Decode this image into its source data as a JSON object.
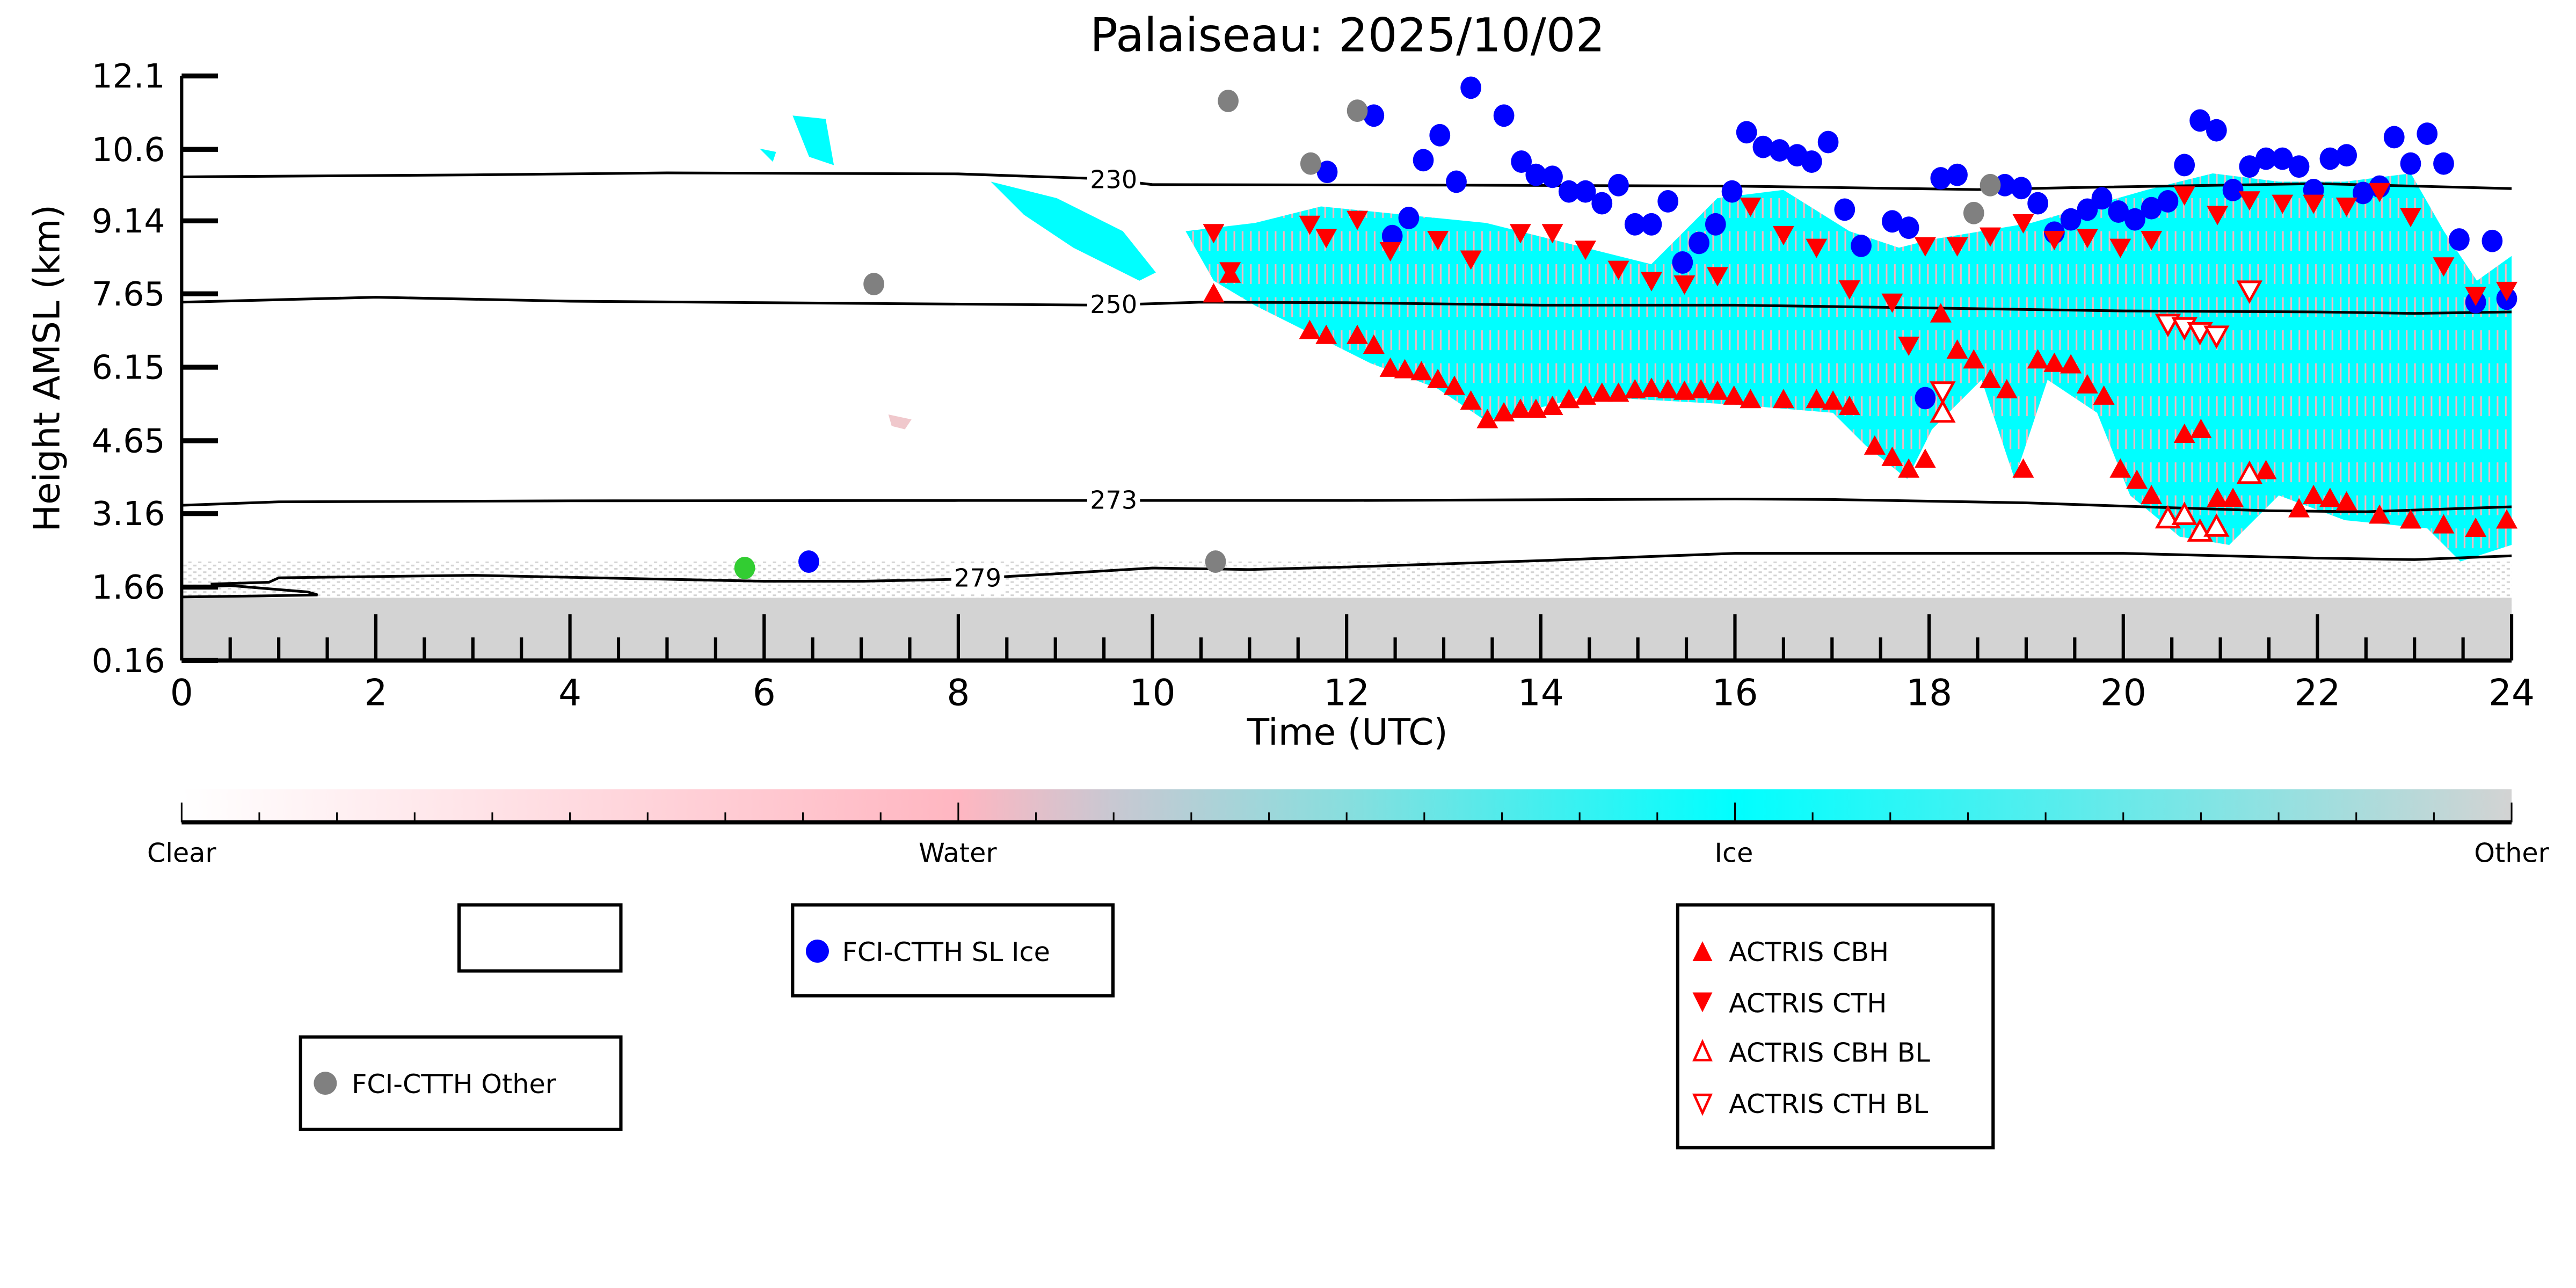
{
  "chart_data": {
    "type": "scatter",
    "title": "Palaiseau: 2025/10/02",
    "xlabel": "Time (UTC)",
    "ylabel": "Height AMSL (km)",
    "xlim": [
      0,
      24
    ],
    "ylim": [
      0.16,
      12.1
    ],
    "xticks": [
      "0",
      "2",
      "4",
      "6",
      "8",
      "10",
      "12",
      "14",
      "16",
      "18",
      "20",
      "22",
      "24"
    ],
    "xtick_values": [
      0,
      2,
      4,
      6,
      8,
      10,
      12,
      14,
      16,
      18,
      20,
      22,
      24
    ],
    "yticks": [
      "0.16",
      "1.66",
      "3.16",
      "4.65",
      "6.15",
      "7.65",
      "9.14",
      "10.6",
      "12.1"
    ],
    "ytick_values": [
      0.16,
      1.66,
      3.16,
      4.65,
      6.15,
      7.65,
      9.14,
      10.6,
      12.1
    ],
    "grid": false,
    "colorbar": {
      "labels": [
        "Clear",
        "Water",
        "Ice",
        "Other"
      ],
      "colors": [
        "#ffffff",
        "#ffb6c1",
        "#00ffff",
        "#d3d3d3"
      ]
    },
    "background_classes": {
      "ice": "#00ffff",
      "water": "#ffb6c1",
      "other": "#d3d3d3"
    },
    "contours": [
      {
        "label": "230",
        "label_x": 9.6,
        "points": [
          [
            0,
            10.04
          ],
          [
            3,
            10.08
          ],
          [
            5,
            10.12
          ],
          [
            8,
            10.1
          ],
          [
            9.5,
            10.0
          ],
          [
            10,
            9.88
          ],
          [
            13,
            9.87
          ],
          [
            16,
            9.85
          ],
          [
            18.5,
            9.78
          ],
          [
            19.5,
            9.82
          ],
          [
            22,
            9.9
          ],
          [
            24,
            9.8
          ]
        ]
      },
      {
        "label": "250",
        "label_x": 9.6,
        "points": [
          [
            0,
            7.48
          ],
          [
            2,
            7.58
          ],
          [
            4,
            7.5
          ],
          [
            6,
            7.47
          ],
          [
            9.5,
            7.42
          ],
          [
            10.5,
            7.48
          ],
          [
            12,
            7.47
          ],
          [
            14,
            7.42
          ],
          [
            16,
            7.42
          ],
          [
            18,
            7.36
          ],
          [
            20,
            7.3
          ],
          [
            22,
            7.28
          ],
          [
            23,
            7.25
          ],
          [
            24,
            7.28
          ]
        ]
      },
      {
        "label": "273",
        "label_x": 9.6,
        "points": [
          [
            0,
            3.33
          ],
          [
            1,
            3.4
          ],
          [
            4,
            3.42
          ],
          [
            8,
            3.43
          ],
          [
            12,
            3.43
          ],
          [
            16,
            3.46
          ],
          [
            17,
            3.45
          ],
          [
            19,
            3.38
          ],
          [
            20.5,
            3.28
          ],
          [
            21.5,
            3.22
          ],
          [
            22.5,
            3.2
          ],
          [
            24,
            3.3
          ]
        ]
      },
      {
        "label": "279",
        "label_x": 8.2,
        "points": [
          [
            0.3,
            1.72
          ],
          [
            0.9,
            1.76
          ],
          [
            1,
            1.85
          ],
          [
            3,
            1.9
          ],
          [
            5,
            1.82
          ],
          [
            6,
            1.78
          ],
          [
            7,
            1.78
          ],
          [
            8,
            1.82
          ],
          [
            9,
            1.93
          ],
          [
            10,
            2.05
          ],
          [
            11,
            2.02
          ],
          [
            12,
            2.07
          ],
          [
            14,
            2.2
          ],
          [
            16,
            2.35
          ],
          [
            18,
            2.35
          ],
          [
            20,
            2.35
          ],
          [
            22,
            2.25
          ],
          [
            23,
            2.22
          ],
          [
            24,
            2.3
          ]
        ]
      },
      {
        "label": "",
        "points": [
          [
            0,
            1.64
          ],
          [
            0.5,
            1.69
          ],
          [
            1.3,
            1.56
          ],
          [
            1.4,
            1.5
          ],
          [
            0.8,
            1.48
          ],
          [
            0,
            1.46
          ]
        ]
      }
    ],
    "series": [
      {
        "name": "FCI-CTTH SL Ice",
        "marker": "circle",
        "color": "#0000ff",
        "x": [
          6.46,
          11.8,
          12.28,
          12.47,
          12.64,
          12.79,
          12.96,
          13.13,
          13.28,
          13.62,
          13.8,
          13.95,
          14.12,
          14.29,
          14.46,
          14.63,
          14.8,
          14.97,
          15.14,
          15.31,
          15.46,
          15.63,
          15.8,
          15.97,
          16.12,
          16.29,
          16.46,
          16.64,
          16.79,
          16.96,
          17.13,
          17.3,
          17.62,
          17.79,
          17.96,
          18.12,
          18.29,
          18.78,
          18.95,
          19.12,
          19.29,
          19.46,
          19.63,
          19.78,
          19.95,
          20.12,
          20.29,
          20.46,
          20.63,
          20.79,
          20.96,
          21.13,
          21.3,
          21.47,
          21.64,
          21.81,
          21.96,
          22.13,
          22.3,
          22.47,
          22.64,
          22.79,
          22.96,
          23.13,
          23.3,
          23.46,
          23.63,
          23.8,
          23.95
        ],
        "y": [
          2.18,
          10.14,
          11.29,
          8.83,
          9.2,
          10.38,
          10.89,
          9.94,
          11.86,
          11.29,
          10.35,
          10.08,
          10.04,
          9.74,
          9.74,
          9.5,
          9.87,
          9.07,
          9.07,
          9.54,
          8.29,
          8.69,
          9.07,
          9.74,
          10.95,
          10.65,
          10.58,
          10.48,
          10.35,
          10.75,
          9.37,
          8.63,
          9.13,
          9.0,
          5.52,
          10.01,
          10.08,
          9.87,
          9.81,
          9.5,
          8.9,
          9.17,
          9.37,
          9.6,
          9.33,
          9.17,
          9.4,
          9.54,
          10.28,
          11.19,
          10.99,
          9.77,
          10.25,
          10.41,
          10.41,
          10.25,
          9.77,
          10.41,
          10.48,
          9.71,
          9.84,
          10.85,
          10.31,
          10.92,
          10.31,
          8.76,
          7.48,
          8.73,
          7.55
        ]
      },
      {
        "name": "FCI-CTTH Other",
        "marker": "circle",
        "color": "#808080",
        "x": [
          7.13,
          10.65,
          10.78,
          11.63,
          12.11,
          18.46,
          18.63
        ],
        "y": [
          7.85,
          2.18,
          11.59,
          10.31,
          11.39,
          9.3,
          9.87
        ]
      },
      {
        "name": "",
        "marker": "circle",
        "color": "#32cd32",
        "x": [
          5.8
        ],
        "y": [
          2.05
        ]
      },
      {
        "name": "ACTRIS CBH",
        "marker": "triangle-up",
        "color": "#ff0000",
        "filled": true,
        "x": [
          10.63,
          10.8,
          11.62,
          11.79,
          12.11,
          12.28,
          12.45,
          12.6,
          12.77,
          12.94,
          13.11,
          13.28,
          13.45,
          13.62,
          13.79,
          13.95,
          14.12,
          14.29,
          14.46,
          14.63,
          14.8,
          14.97,
          15.14,
          15.31,
          15.48,
          15.65,
          15.82,
          15.99,
          16.16,
          16.5,
          16.84,
          17.01,
          17.18,
          17.44,
          17.62,
          17.79,
          17.96,
          18.12,
          18.29,
          18.46,
          18.63,
          18.8,
          18.97,
          19.12,
          19.29,
          19.46,
          19.63,
          19.8,
          19.97,
          20.14,
          20.29,
          20.63,
          20.8,
          20.97,
          21.13,
          21.47,
          21.81,
          21.96,
          22.13,
          22.3,
          22.64,
          22.96,
          23.3,
          23.63,
          23.95
        ],
        "y": [
          7.65,
          8.05,
          6.9,
          6.8,
          6.8,
          6.6,
          6.13,
          6.1,
          6.06,
          5.9,
          5.76,
          5.46,
          5.08,
          5.22,
          5.29,
          5.29,
          5.35,
          5.49,
          5.56,
          5.62,
          5.62,
          5.69,
          5.72,
          5.69,
          5.66,
          5.69,
          5.66,
          5.56,
          5.49,
          5.49,
          5.49,
          5.46,
          5.35,
          4.54,
          4.31,
          4.07,
          4.27,
          7.24,
          6.5,
          6.3,
          5.9,
          5.69,
          4.07,
          6.3,
          6.23,
          6.2,
          5.79,
          5.56,
          4.07,
          3.84,
          3.53,
          4.78,
          4.88,
          3.47,
          3.47,
          4.04,
          3.26,
          3.53,
          3.47,
          3.4,
          3.13,
          3.03,
          2.93,
          2.86,
          3.03
        ]
      },
      {
        "name": "ACTRIS CTH",
        "marker": "triangle-down",
        "color": "#ff0000",
        "filled": true,
        "x": [
          10.63,
          10.8,
          11.62,
          11.79,
          12.11,
          12.45,
          12.94,
          13.28,
          13.79,
          14.12,
          14.46,
          14.8,
          15.14,
          15.48,
          15.82,
          16.16,
          16.5,
          16.84,
          17.18,
          17.62,
          17.79,
          17.96,
          18.29,
          18.63,
          18.97,
          19.29,
          19.63,
          19.97,
          20.29,
          20.63,
          20.97,
          21.3,
          21.64,
          21.96,
          22.3,
          22.64,
          22.96,
          23.3,
          23.63,
          23.95
        ],
        "y": [
          8.9,
          8.12,
          9.07,
          8.8,
          9.17,
          8.53,
          8.76,
          8.36,
          8.9,
          8.9,
          8.56,
          8.15,
          7.92,
          7.85,
          8.02,
          9.44,
          8.86,
          8.6,
          7.75,
          7.48,
          6.6,
          8.63,
          8.63,
          8.83,
          9.1,
          8.76,
          8.8,
          8.6,
          8.76,
          9.67,
          9.27,
          9.57,
          9.5,
          9.5,
          9.44,
          9.74,
          9.23,
          8.22,
          7.62,
          7.72
        ]
      },
      {
        "name": "ACTRIS CBH BL",
        "marker": "triangle-up",
        "color": "#ff0000",
        "filled": false,
        "x": [
          18.14,
          20.46,
          20.63,
          20.79,
          20.96,
          21.3
        ],
        "y": [
          5.22,
          3.06,
          3.13,
          2.79,
          2.89,
          3.97
        ]
      },
      {
        "name": "ACTRIS CTH BL",
        "marker": "triangle-down",
        "color": "#ff0000",
        "filled": false,
        "x": [
          18.14,
          20.46,
          20.63,
          20.79,
          20.96,
          21.3
        ],
        "y": [
          5.66,
          7.04,
          6.97,
          6.87,
          6.8,
          7.72
        ]
      }
    ]
  },
  "legend": {
    "sl_ice": "FCI-CTTH SL Ice",
    "other": "FCI-CTTH Other",
    "actris": [
      "ACTRIS CBH",
      "ACTRIS CTH",
      "ACTRIS CBH BL",
      "ACTRIS CTH BL"
    ]
  }
}
